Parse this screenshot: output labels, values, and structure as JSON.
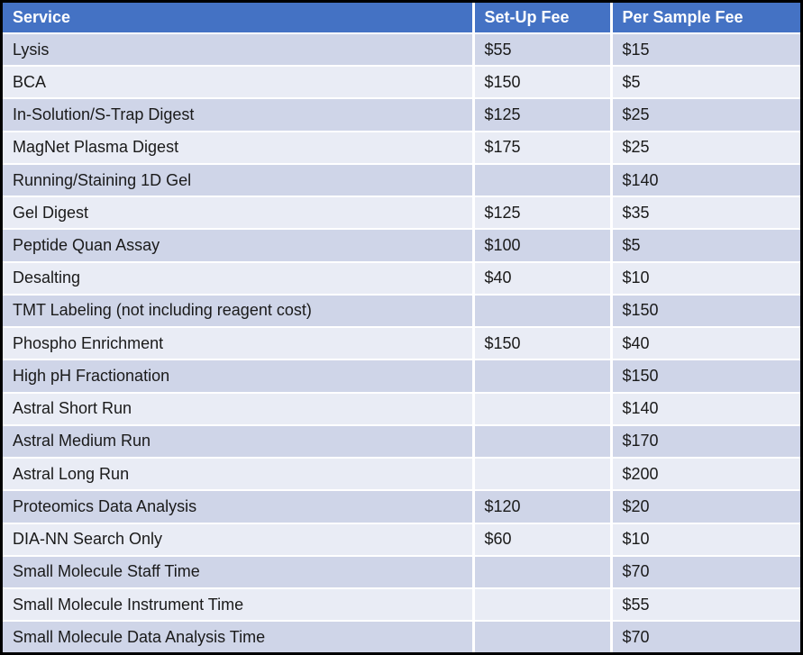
{
  "colors": {
    "header_bg": "#4472C4",
    "header_text": "#FFFFFF",
    "row_band_dark": "#CFD5E8",
    "row_band_light": "#E9ECF5",
    "divider": "#FFFFFF",
    "outer_border": "#000000",
    "body_text": "#1A1A1A"
  },
  "chart_data": {
    "type": "table",
    "columns": [
      "Service",
      "Set-Up Fee",
      "Per Sample Fee"
    ],
    "rows": [
      [
        "Lysis",
        "$55",
        "$15"
      ],
      [
        "BCA",
        "$150",
        "$5"
      ],
      [
        "In-Solution/S-Trap Digest",
        "$125",
        "$25"
      ],
      [
        "MagNet Plasma Digest",
        "$175",
        "$25"
      ],
      [
        "Running/Staining 1D Gel",
        "",
        "$140"
      ],
      [
        "Gel Digest",
        "$125",
        "$35"
      ],
      [
        "Peptide Quan Assay",
        "$100",
        "$5"
      ],
      [
        "Desalting",
        "$40",
        "$10"
      ],
      [
        "TMT Labeling (not including reagent cost)",
        "",
        "$150"
      ],
      [
        "Phospho Enrichment",
        "$150",
        "$40"
      ],
      [
        "High pH Fractionation",
        "",
        "$150"
      ],
      [
        "Astral Short Run",
        "",
        "$140"
      ],
      [
        "Astral Medium Run",
        "",
        "$170"
      ],
      [
        "Astral Long Run",
        "",
        "$200"
      ],
      [
        "Proteomics Data Analysis",
        "$120",
        "$20"
      ],
      [
        "DIA-NN Search Only",
        "$60",
        "$10"
      ],
      [
        "Small Molecule Staff Time",
        "",
        "$70"
      ],
      [
        "Small Molecule Instrument Time",
        "",
        "$55"
      ],
      [
        "Small Molecule Data Analysis Time",
        "",
        "$70"
      ]
    ]
  }
}
